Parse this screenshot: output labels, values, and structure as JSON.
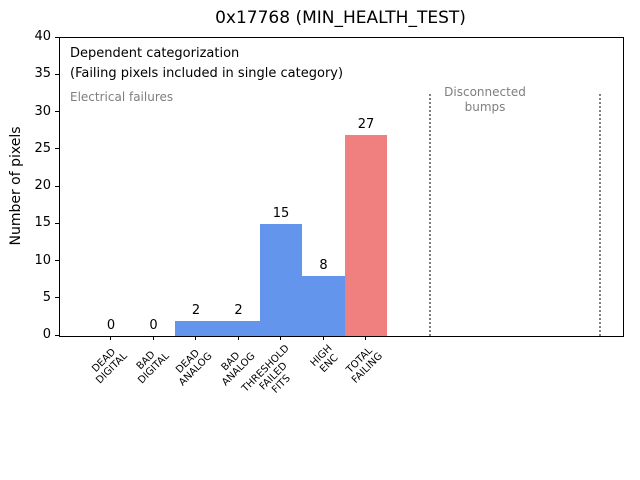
{
  "chart_data": {
    "type": "bar",
    "title": "0x17768 (MIN_HEALTH_TEST)",
    "xlabel": "",
    "ylabel": "Number of pixels",
    "ylim": [
      0,
      40
    ],
    "yticks": [
      0,
      5,
      10,
      15,
      20,
      25,
      30,
      35,
      40
    ],
    "grid": false,
    "legend_position": "none",
    "categories": [
      "DEAD\nDIGITAL",
      "BAD\nDIGITAL",
      "DEAD\nANALOG",
      "BAD\nANALOG",
      "THRESHOLD\nFAILED\nFITS",
      "HIGH\nENC",
      "TOTAL\nFAILING"
    ],
    "values": [
      0,
      0,
      2,
      2,
      15,
      8,
      27
    ],
    "value_labels": [
      "0",
      "0",
      "2",
      "2",
      "15",
      "8",
      "27"
    ],
    "bar_colors": [
      "#6495ed",
      "#6495ed",
      "#6495ed",
      "#6495ed",
      "#6495ed",
      "#6495ed",
      "#f08080"
    ],
    "colors": {
      "bar_blue": "#6495ed",
      "bar_red": "#f08080",
      "gray_text": "#7f7f7f",
      "separator_gray": "#808080"
    },
    "annotations": [
      {
        "text": "Dependent categorization",
        "color": "#000000"
      },
      {
        "text": "(Failing pixels included in single category)",
        "color": "#000000"
      },
      {
        "text": "Electrical failures",
        "color": "#7f7f7f"
      },
      {
        "text": "Disconnected\nbumps",
        "color": "#7f7f7f"
      }
    ],
    "separator_lines": {
      "style": "dotted",
      "color": "#808080",
      "x_positions_data": [
        7.5,
        11.5
      ]
    }
  }
}
